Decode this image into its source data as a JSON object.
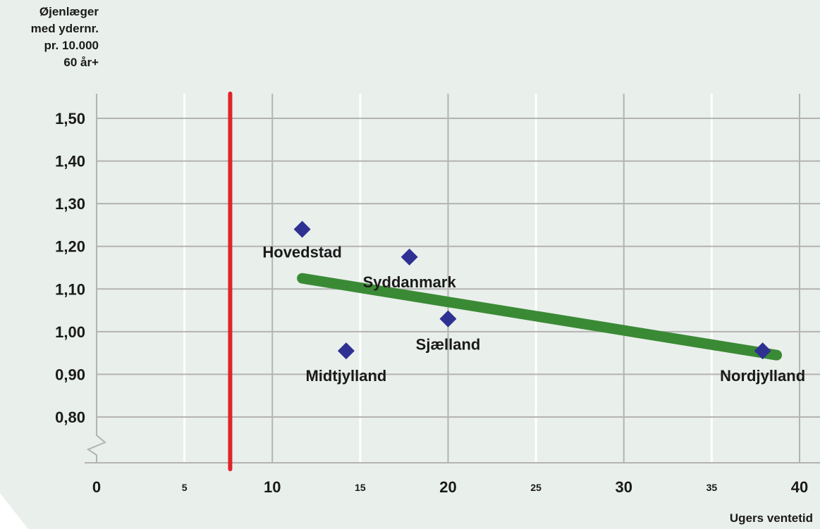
{
  "chart_data": {
    "type": "scatter",
    "title": "",
    "ylabel_lines": [
      "Øjenlæger",
      "med ydernr.",
      "pr. 10.000",
      "60 år+"
    ],
    "xlabel": "Ugers ventetid",
    "xlim": [
      0,
      40
    ],
    "ylim": [
      0.7,
      1.55
    ],
    "x_ticks": [
      {
        "value": 0,
        "label": "0",
        "major": true
      },
      {
        "value": 5,
        "label": "5",
        "major": false
      },
      {
        "value": 10,
        "label": "10",
        "major": true
      },
      {
        "value": 15,
        "label": "15",
        "major": false
      },
      {
        "value": 20,
        "label": "20",
        "major": true
      },
      {
        "value": 25,
        "label": "25",
        "major": false
      },
      {
        "value": 30,
        "label": "30",
        "major": true
      },
      {
        "value": 35,
        "label": "35",
        "major": false
      },
      {
        "value": 40,
        "label": "40",
        "major": true
      }
    ],
    "y_ticks": [
      {
        "value": 0.8,
        "label": "0,80"
      },
      {
        "value": 0.9,
        "label": "0,90"
      },
      {
        "value": 1.0,
        "label": "1,00"
      },
      {
        "value": 1.1,
        "label": "1,10"
      },
      {
        "value": 1.2,
        "label": "1,20"
      },
      {
        "value": 1.3,
        "label": "1,30"
      },
      {
        "value": 1.4,
        "label": "1,40"
      },
      {
        "value": 1.5,
        "label": "1,50"
      }
    ],
    "points": [
      {
        "name": "Hovedstad",
        "x": 11.7,
        "y": 1.24
      },
      {
        "name": "Syddanmark",
        "x": 17.8,
        "y": 1.175
      },
      {
        "name": "Sjælland",
        "x": 20.0,
        "y": 1.03
      },
      {
        "name": "Midtjylland",
        "x": 14.2,
        "y": 0.955
      },
      {
        "name": "Nordjylland",
        "x": 37.9,
        "y": 0.955
      }
    ],
    "trendline": {
      "x": [
        11.7,
        38.7
      ],
      "y": [
        1.125,
        0.945
      ]
    },
    "reference_line": {
      "x": 7.6
    },
    "axis_break": true,
    "grid": true,
    "colors": {
      "background": "#e9efeb",
      "grid": "#b3b3b3",
      "minor_grid": "#ffffff",
      "points": "#2e3192",
      "trend": "#3a8a35",
      "reference": "#e02428",
      "text": "#1a1a1a"
    }
  }
}
